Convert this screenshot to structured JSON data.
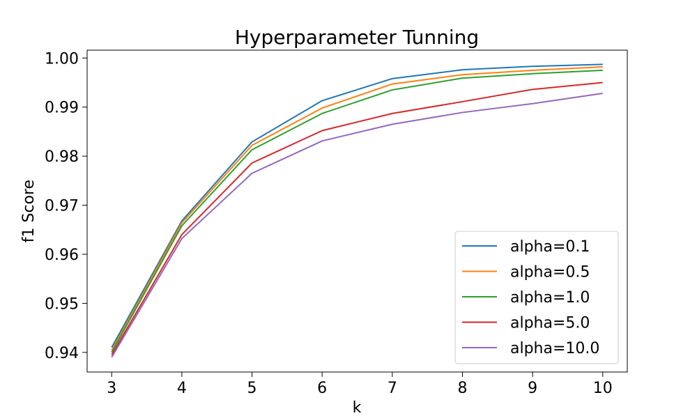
{
  "chart_data": {
    "type": "line",
    "title": "Hyperparameter Tunning",
    "xlabel": "k",
    "ylabel": "f1 Score",
    "x": [
      3,
      4,
      5,
      6,
      7,
      8,
      9,
      10
    ],
    "xlim": [
      2.65,
      10.35
    ],
    "ylim": [
      0.936,
      1.0016
    ],
    "xticks": [
      3,
      4,
      5,
      6,
      7,
      8,
      9,
      10
    ],
    "xtick_labels": [
      "3",
      "4",
      "5",
      "6",
      "7",
      "8",
      "9",
      "10"
    ],
    "yticks": [
      0.94,
      0.95,
      0.96,
      0.97,
      0.98,
      0.99,
      1.0
    ],
    "ytick_labels": [
      "0.94",
      "0.95",
      "0.96",
      "0.97",
      "0.98",
      "0.99",
      "1.00"
    ],
    "grid": false,
    "legend_position": "lower-right",
    "series": [
      {
        "name": "alpha=0.1",
        "color": "#1f77b4",
        "values": [
          0.941,
          0.9668,
          0.9829,
          0.9913,
          0.9958,
          0.9976,
          0.9983,
          0.9987
        ]
      },
      {
        "name": "alpha=0.5",
        "color": "#ff7f0e",
        "values": [
          0.9404,
          0.9664,
          0.9822,
          0.9898,
          0.9947,
          0.9966,
          0.9975,
          0.9982
        ]
      },
      {
        "name": "alpha=1.0",
        "color": "#2ca02c",
        "values": [
          0.94,
          0.9658,
          0.9813,
          0.9887,
          0.9935,
          0.9959,
          0.9968,
          0.9975
        ]
      },
      {
        "name": "alpha=5.0",
        "color": "#d62728",
        "values": [
          0.9395,
          0.964,
          0.9786,
          0.9852,
          0.9887,
          0.9911,
          0.9936,
          0.995
        ]
      },
      {
        "name": "alpha=10.0",
        "color": "#9467bd",
        "values": [
          0.939,
          0.9632,
          0.9765,
          0.9831,
          0.9865,
          0.9889,
          0.9907,
          0.9928
        ]
      }
    ]
  }
}
